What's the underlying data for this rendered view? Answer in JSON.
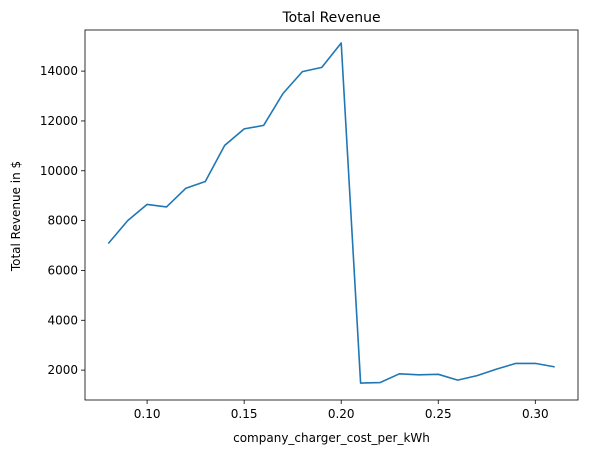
{
  "chart_data": {
    "type": "line",
    "title": "Total Revenue",
    "xlabel": "company_charger_cost_per_kWh",
    "ylabel": "Total Revenue in $",
    "xlim": [
      0.068,
      0.322
    ],
    "ylim": [
      800,
      15650
    ],
    "xticks": [
      0.1,
      0.15,
      0.2,
      0.25,
      0.3
    ],
    "xtick_labels": [
      "0.10",
      "0.15",
      "0.20",
      "0.25",
      "0.30"
    ],
    "yticks": [
      2000,
      4000,
      6000,
      8000,
      10000,
      12000,
      14000
    ],
    "ytick_labels": [
      "2000",
      "4000",
      "6000",
      "8000",
      "10000",
      "12000",
      "14000"
    ],
    "grid": false,
    "series": [
      {
        "color": "#1f77b4",
        "x": [
          0.08,
          0.09,
          0.1,
          0.11,
          0.12,
          0.13,
          0.14,
          0.15,
          0.16,
          0.17,
          0.18,
          0.19,
          0.2,
          0.21,
          0.22,
          0.23,
          0.24,
          0.25,
          0.26,
          0.27,
          0.28,
          0.29,
          0.3,
          0.31
        ],
        "y": [
          7080,
          8000,
          8650,
          8550,
          9300,
          9570,
          11020,
          11680,
          11820,
          13100,
          13980,
          14150,
          15130,
          1480,
          1500,
          1850,
          1810,
          1830,
          1600,
          1780,
          2040,
          2270,
          2270,
          2130
        ]
      }
    ]
  }
}
